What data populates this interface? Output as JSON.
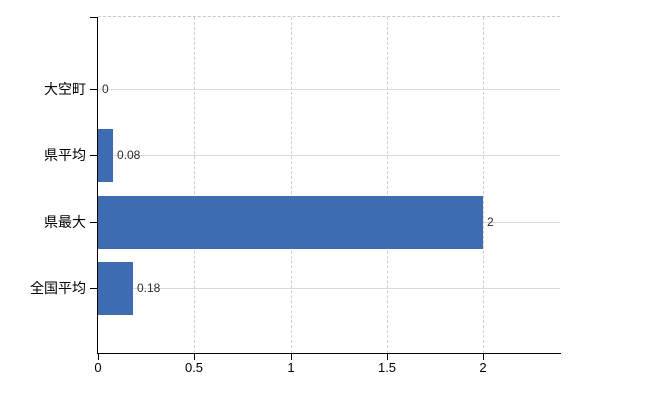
{
  "chart_data": {
    "type": "bar",
    "orientation": "horizontal",
    "title": "",
    "categories": [
      "大空町",
      "県平均",
      "県最大",
      "全国平均"
    ],
    "values": [
      0,
      0.08,
      2,
      0.18
    ],
    "value_labels": [
      "0",
      "0.08",
      "2",
      "0.18"
    ],
    "x_ticks": [
      0,
      0.5,
      1,
      1.5,
      2
    ],
    "x_tick_labels": [
      "0",
      "0.5",
      "1",
      "1.5",
      "2"
    ],
    "xlim": [
      0,
      2.4
    ],
    "bar_color": "#3e6cb0",
    "grid": true,
    "legend": false,
    "background_color": "#ffffff"
  }
}
